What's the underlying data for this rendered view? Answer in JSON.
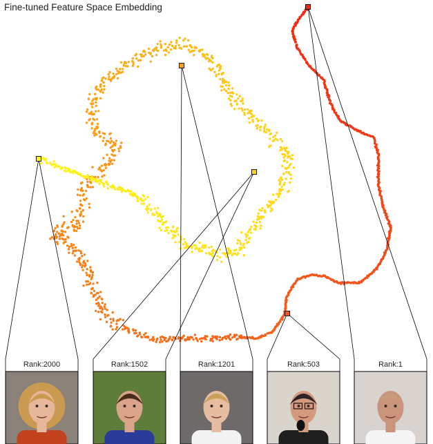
{
  "title": "Fine-tuned Feature Space Embedding",
  "colors": {
    "rank1": "#ee2a14",
    "rank503": "#f4551a",
    "rank1201": "#f7a21a",
    "rank1502": "#ffd21a",
    "rank2000": "#fff41a",
    "point_edge": "#000000",
    "connector": "#000000"
  },
  "samples": [
    {
      "label": "Rank:2000",
      "icon": "face-photo-woman-short-blonde-hair"
    },
    {
      "label": "Rank:1502",
      "icon": "face-photo-athlete-surprised-red-jersey"
    },
    {
      "label": "Rank:1201",
      "icon": "face-photo-young-man-blond-white-shirt"
    },
    {
      "label": "Rank:503",
      "icon": "face-photo-older-man-glasses-microphone"
    },
    {
      "label": "Rank:1",
      "icon": "face-photo-bald-man-white-shirt"
    }
  ],
  "chart_data": {
    "type": "scatter",
    "xlabel": "",
    "ylabel": "",
    "grid": false,
    "legend": "none",
    "series": [
      {
        "values": [
          1,
          2000
        ]
      }
    ]
  }
}
